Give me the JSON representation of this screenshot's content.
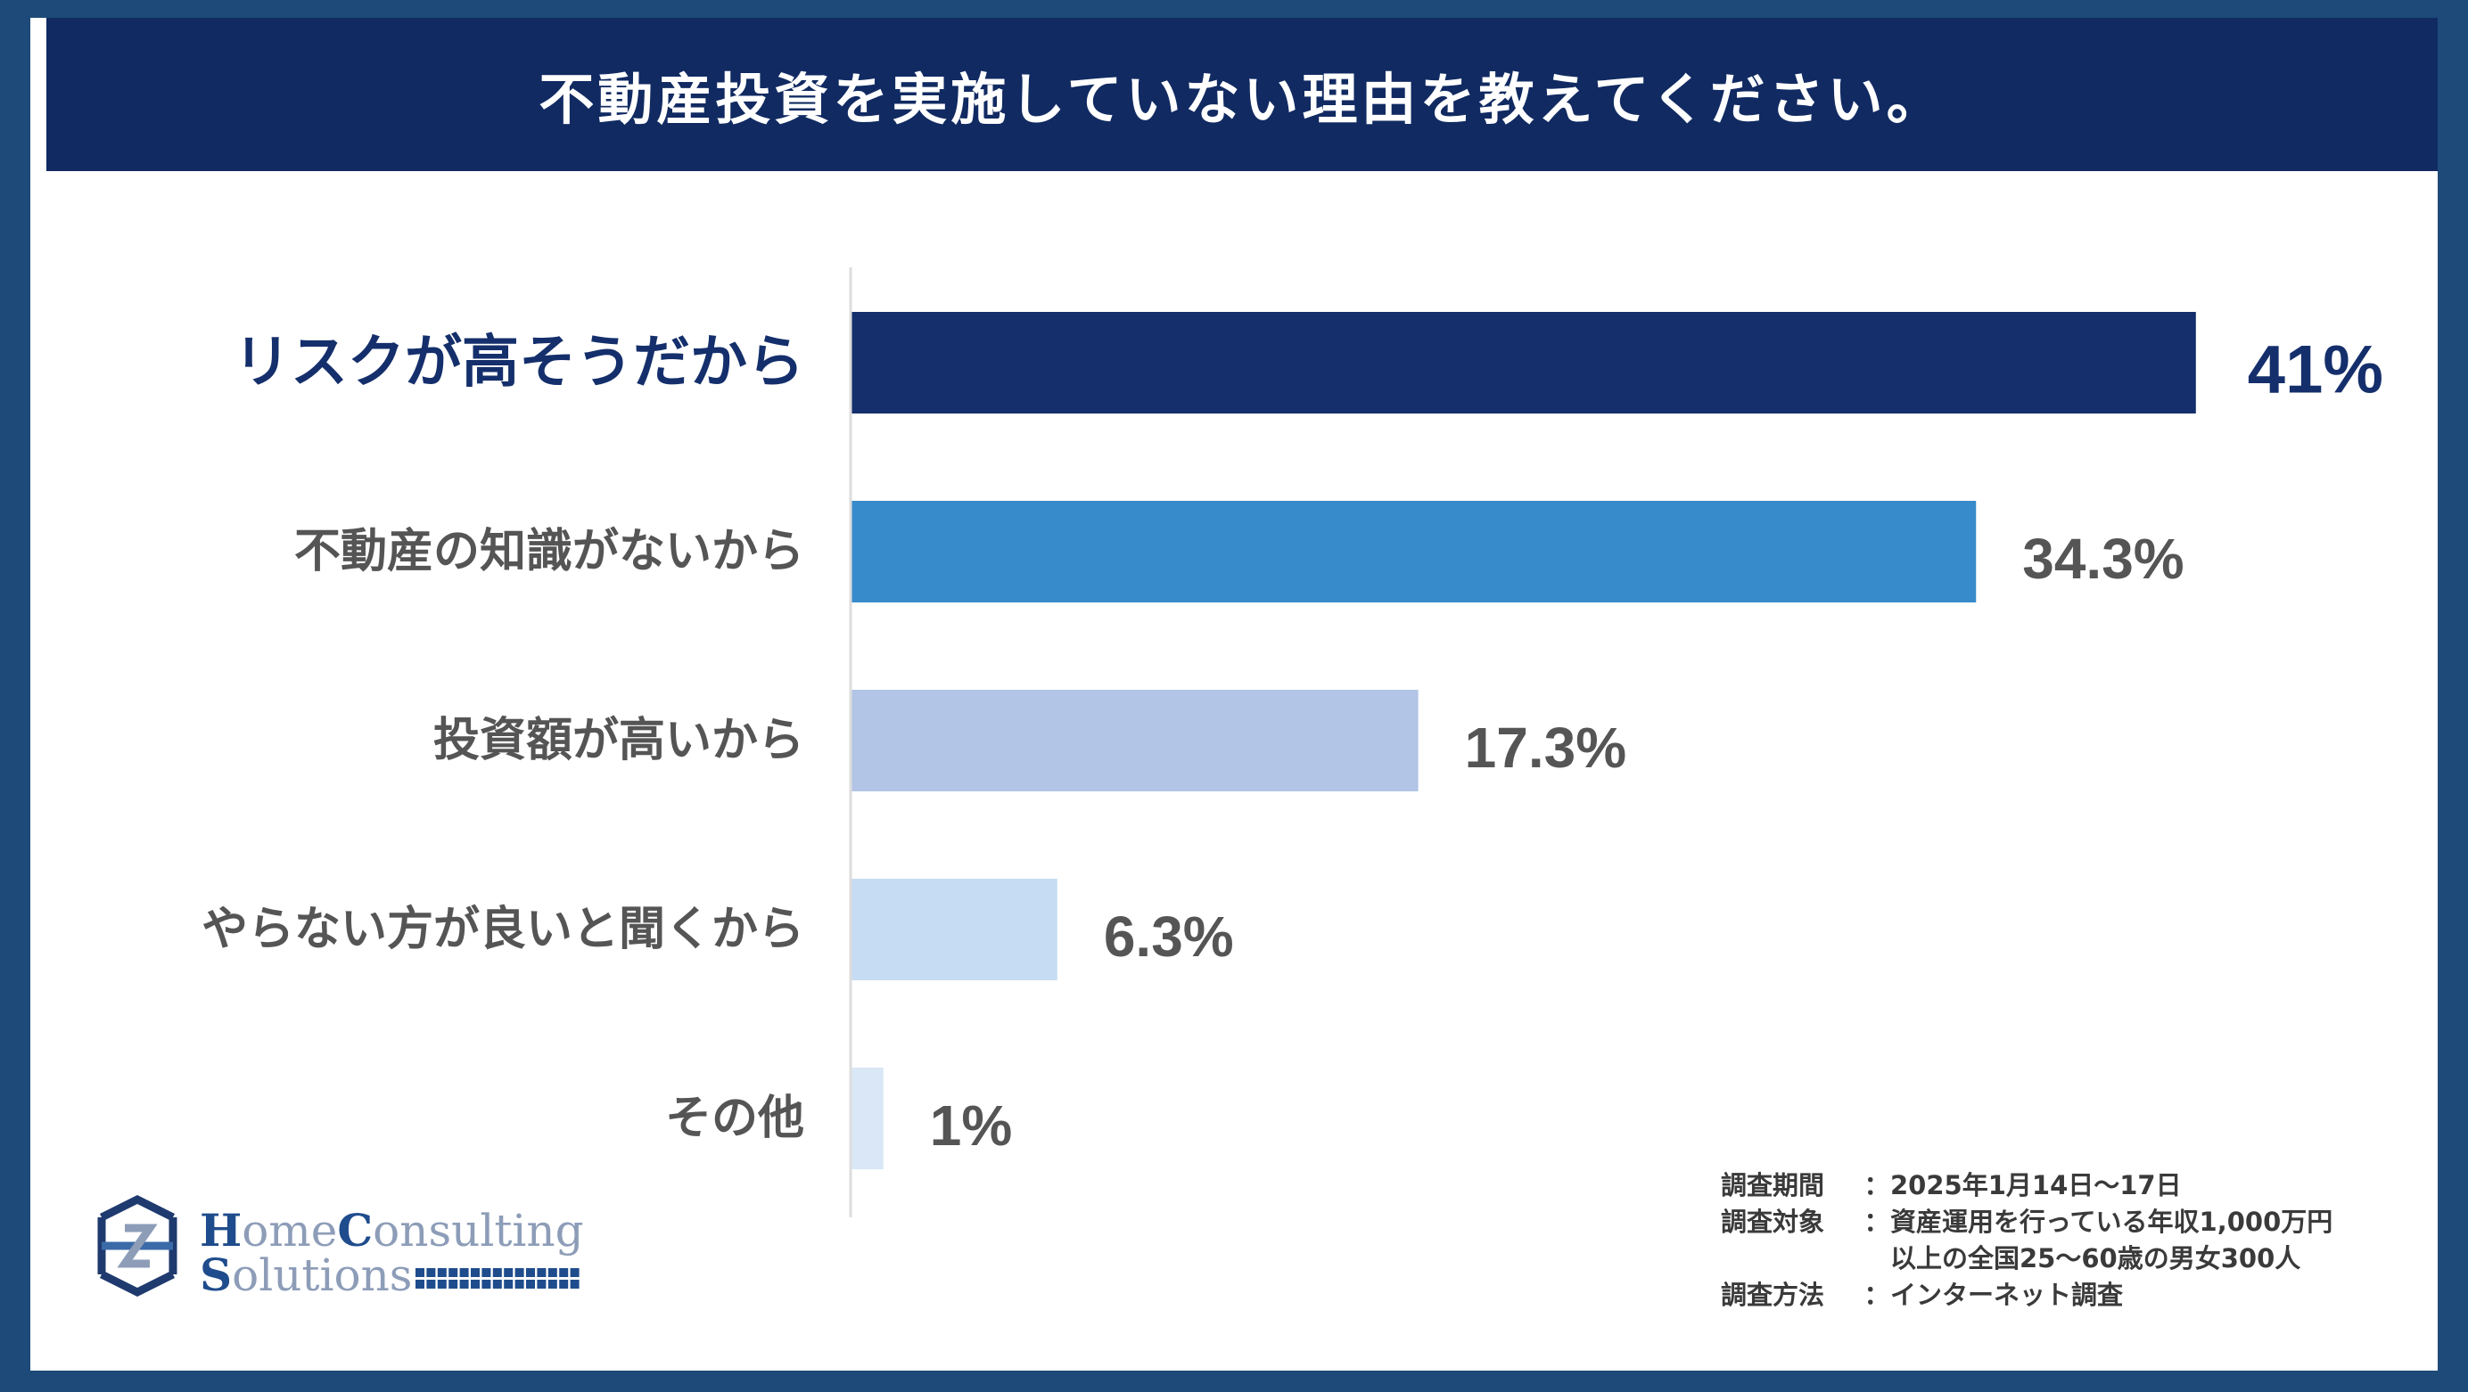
{
  "title": "不動産投資を実施していない理由を教えてください。",
  "chart_data": {
    "type": "bar",
    "orientation": "horizontal",
    "title": "不動産投資を実施していない理由を教えてください。",
    "categories": [
      "リスクが高そうだから",
      "不動産の知識がないから",
      "投資額が高いから",
      "やらない方が良いと聞くから",
      "その他"
    ],
    "values": [
      41,
      34.3,
      17.3,
      6.3,
      1
    ],
    "value_labels": [
      "41%",
      "34.3%",
      "17.3%",
      "6.3%",
      "1%"
    ],
    "unit": "%",
    "xlim": [
      0,
      50
    ],
    "colors": [
      "#142f6b",
      "#378bcb",
      "#b2c5e6",
      "#c6dcf2",
      "#d9e7f6"
    ],
    "highlight_index": 0,
    "highlight_color": "#142f6b",
    "default_label_color": "#555555"
  },
  "survey_notes": [
    {
      "key": "調査期間",
      "value": "2025年1月14日～17日"
    },
    {
      "key": "調査対象",
      "value": "資産運用を行っている年収1,000万円"
    },
    {
      "key": "",
      "value": "以上の全国25～60歳の男女300人"
    },
    {
      "key": "調査方法",
      "value": "インターネット調査"
    }
  ],
  "survey_note_separator": "：",
  "logo": {
    "line1_cap1": "H",
    "line1_rest1": "ome",
    "line1_cap2": "C",
    "line1_rest2": "onsulting",
    "line2_cap": "S",
    "line2_rest": "olutions"
  }
}
